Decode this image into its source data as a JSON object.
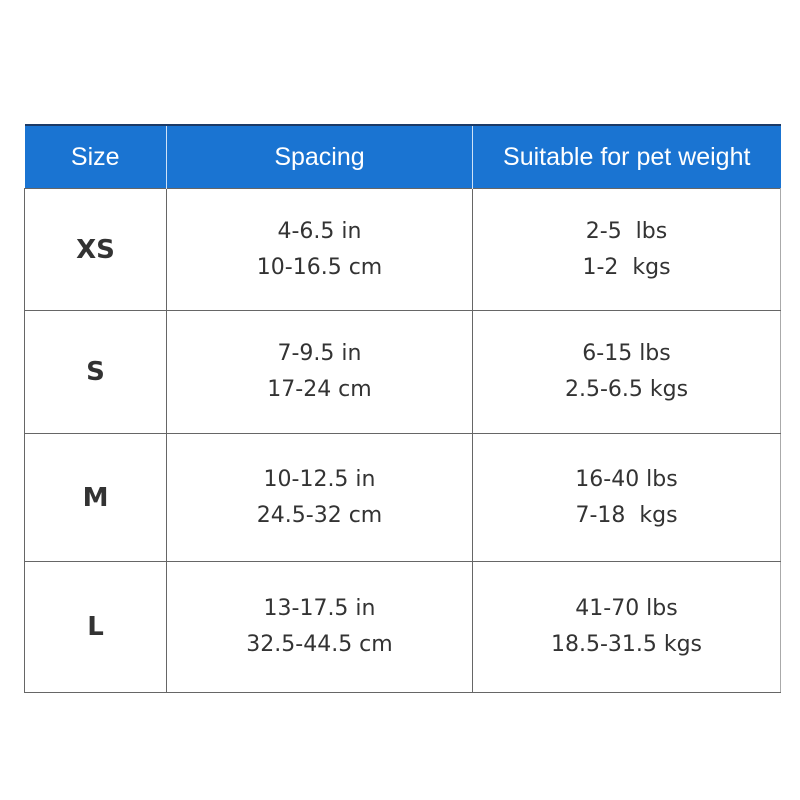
{
  "header": {
    "size": "Size",
    "spacing": "Spacing",
    "weight": "Suitable for pet weight"
  },
  "colors": {
    "header_bg": "#1a74d2",
    "header_text": "#ffffff",
    "body_text": "#333333"
  },
  "rows": [
    {
      "size": "XS",
      "spacing_in": "4-6.5 in",
      "spacing_cm": "10-16.5 cm",
      "weight_lbs": "2-5  lbs",
      "weight_kgs": "1-2  kgs"
    },
    {
      "size": "S",
      "spacing_in": "7-9.5 in",
      "spacing_cm": "17-24 cm",
      "weight_lbs": "6-15 lbs",
      "weight_kgs": "2.5-6.5 kgs"
    },
    {
      "size": "M",
      "spacing_in": "10-12.5 in",
      "spacing_cm": "24.5-32 cm",
      "weight_lbs": "16-40 lbs",
      "weight_kgs": "7-18  kgs"
    },
    {
      "size": "L",
      "spacing_in": "13-17.5 in",
      "spacing_cm": "32.5-44.5 cm",
      "weight_lbs": "41-70 lbs",
      "weight_kgs": "18.5-31.5 kgs"
    }
  ]
}
